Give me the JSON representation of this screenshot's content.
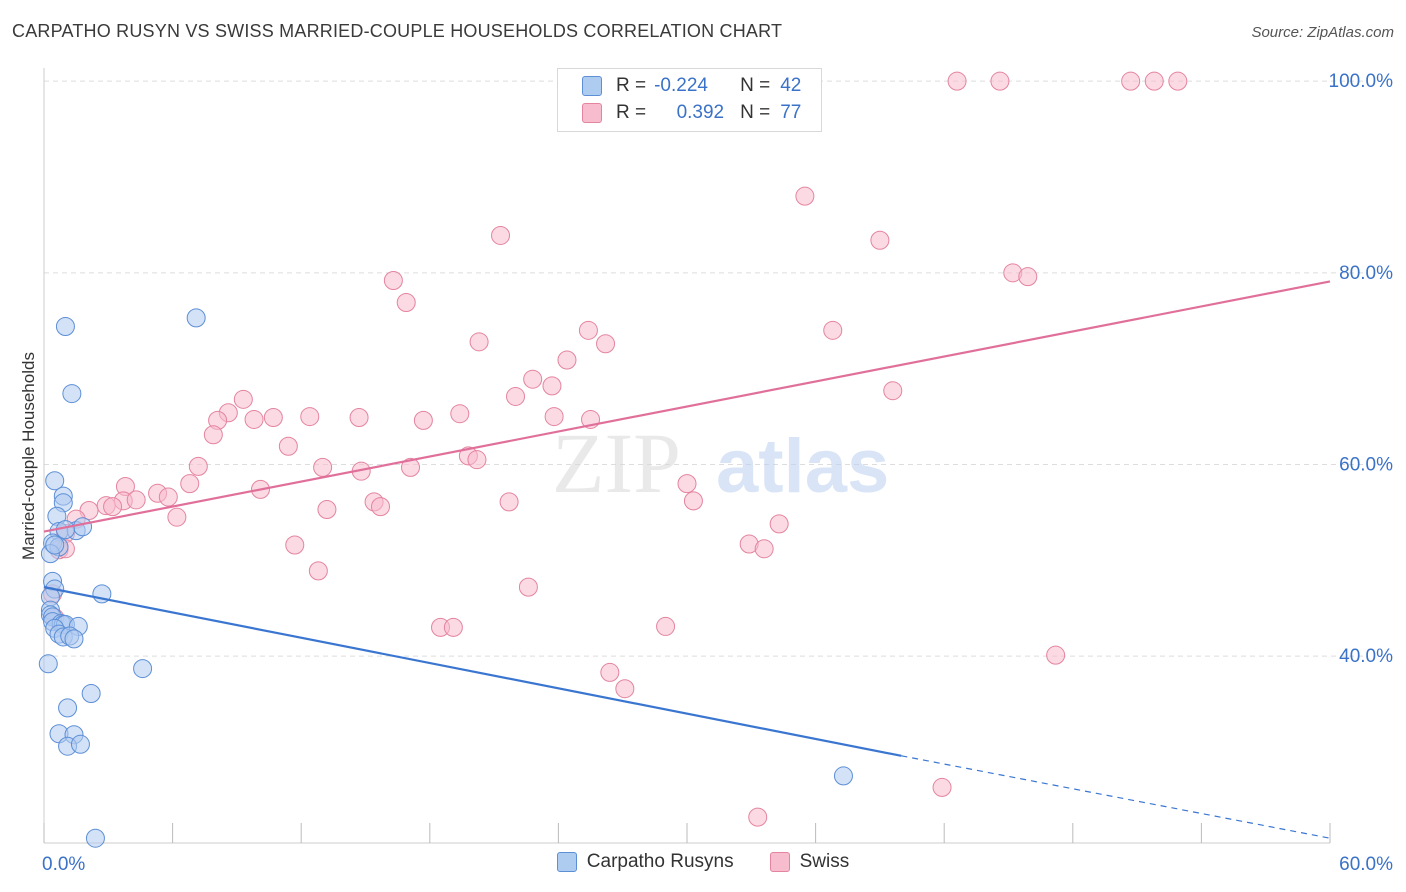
{
  "header": {
    "title": "CARPATHO RUSYN VS SWISS MARRIED-COUPLE HOUSEHOLDS CORRELATION CHART",
    "source": "Source: ZipAtlas.com"
  },
  "watermark": {
    "zip": "ZIP",
    "atlas": "atlas"
  },
  "legend": {
    "rows": [
      {
        "r_label": "R =",
        "r_value": "-0.224",
        "n_label": "N =",
        "n_value": "42"
      },
      {
        "r_label": "R =",
        "r_value": "0.392",
        "n_label": "N =",
        "n_value": "77"
      }
    ]
  },
  "colors": {
    "blue_fill": "#aecbf0",
    "blue_stroke": "#5d8fd6",
    "blue_line": "#3a76d0",
    "pink_fill": "#f7bccd",
    "pink_stroke": "#e4849f",
    "pink_line": "#e0709a",
    "axis_text": "#3a72c8",
    "grid": "#dddddd"
  },
  "chart_data": {
    "type": "scatter",
    "title": "CARPATHO RUSYN VS SWISS MARRIED-COUPLE HOUSEHOLDS CORRELATION CHART",
    "xlabel": "",
    "ylabel": "Married-couple Households",
    "xlim": [
      0,
      60
    ],
    "ylim": [
      20.5,
      102
    ],
    "x_ticks": [
      0,
      6,
      12,
      18,
      24,
      30,
      36,
      42,
      48,
      54,
      60
    ],
    "x_tick_labels": [
      {
        "x": 0,
        "label": "0.0%"
      },
      {
        "x": 60,
        "label": "60.0%"
      }
    ],
    "y_ticks": [
      {
        "y": 40,
        "label": "40.0%"
      },
      {
        "y": 60,
        "label": "60.0%"
      },
      {
        "y": 80,
        "label": "80.0%"
      },
      {
        "y": 100,
        "label": "100.0%"
      }
    ],
    "grid": true,
    "legend_position": "bottom-center",
    "series": [
      {
        "name": "Carpatho Rusyns",
        "color": "#aecbf0",
        "r": -0.224,
        "n": 42,
        "trend": {
          "x0": 0,
          "y0": 47.2,
          "x1": 40,
          "y1": 29.6,
          "dash_to_x": 60,
          "dash_to_y": 21.0
        },
        "points": [
          [
            1.0,
            74.4
          ],
          [
            7.1,
            75.3
          ],
          [
            1.3,
            67.4
          ],
          [
            0.5,
            58.3
          ],
          [
            0.9,
            56.7
          ],
          [
            0.9,
            56.0
          ],
          [
            0.6,
            54.6
          ],
          [
            0.7,
            53.0
          ],
          [
            1.5,
            53.1
          ],
          [
            1.8,
            53.5
          ],
          [
            0.4,
            51.8
          ],
          [
            0.7,
            51.4
          ],
          [
            0.3,
            50.7
          ],
          [
            0.4,
            47.8
          ],
          [
            0.5,
            47.0
          ],
          [
            2.7,
            46.5
          ],
          [
            0.3,
            46.2
          ],
          [
            0.3,
            44.8
          ],
          [
            0.3,
            44.3
          ],
          [
            0.4,
            44.1
          ],
          [
            0.4,
            43.6
          ],
          [
            0.8,
            43.4
          ],
          [
            0.9,
            43.3
          ],
          [
            1.0,
            43.3
          ],
          [
            0.5,
            42.9
          ],
          [
            1.6,
            43.1
          ],
          [
            0.7,
            42.3
          ],
          [
            0.9,
            42.0
          ],
          [
            1.2,
            42.1
          ],
          [
            1.4,
            41.8
          ],
          [
            0.2,
            39.2
          ],
          [
            4.6,
            38.7
          ],
          [
            2.2,
            36.1
          ],
          [
            1.1,
            34.6
          ],
          [
            0.7,
            31.9
          ],
          [
            1.4,
            31.8
          ],
          [
            1.1,
            30.6
          ],
          [
            1.7,
            30.8
          ],
          [
            37.3,
            27.5
          ],
          [
            2.4,
            21.0
          ],
          [
            0.5,
            51.6
          ],
          [
            1.0,
            53.2
          ]
        ]
      },
      {
        "name": "Swiss",
        "color": "#f7bccd",
        "r": 0.392,
        "n": 77,
        "trend": {
          "x0": 0,
          "y0": 53.0,
          "x1": 60,
          "y1": 79.1
        },
        "points": [
          [
            42.6,
            100.0
          ],
          [
            44.6,
            100.0
          ],
          [
            50.7,
            100.0
          ],
          [
            51.8,
            100.0
          ],
          [
            52.9,
            100.0
          ],
          [
            35.5,
            88.0
          ],
          [
            21.3,
            83.9
          ],
          [
            39.0,
            83.4
          ],
          [
            45.2,
            80.0
          ],
          [
            45.9,
            79.6
          ],
          [
            16.3,
            79.2
          ],
          [
            16.9,
            76.9
          ],
          [
            25.4,
            74.0
          ],
          [
            36.8,
            74.0
          ],
          [
            20.3,
            72.8
          ],
          [
            26.2,
            72.6
          ],
          [
            24.4,
            70.9
          ],
          [
            22.8,
            68.9
          ],
          [
            23.7,
            68.2
          ],
          [
            22.0,
            67.1
          ],
          [
            39.6,
            67.7
          ],
          [
            9.3,
            66.8
          ],
          [
            8.6,
            65.4
          ],
          [
            8.1,
            64.6
          ],
          [
            9.8,
            64.7
          ],
          [
            10.7,
            64.9
          ],
          [
            12.4,
            65.0
          ],
          [
            14.7,
            64.9
          ],
          [
            17.7,
            64.6
          ],
          [
            19.4,
            65.3
          ],
          [
            23.8,
            65.0
          ],
          [
            25.5,
            64.7
          ],
          [
            7.9,
            63.1
          ],
          [
            11.4,
            61.9
          ],
          [
            19.8,
            60.9
          ],
          [
            20.2,
            60.5
          ],
          [
            7.2,
            59.8
          ],
          [
            13.0,
            59.7
          ],
          [
            14.8,
            59.3
          ],
          [
            17.1,
            59.7
          ],
          [
            6.8,
            58.0
          ],
          [
            3.8,
            57.7
          ],
          [
            10.1,
            57.4
          ],
          [
            5.3,
            57.0
          ],
          [
            3.7,
            56.2
          ],
          [
            4.3,
            56.3
          ],
          [
            5.8,
            56.6
          ],
          [
            2.9,
            55.7
          ],
          [
            2.1,
            55.2
          ],
          [
            3.2,
            55.6
          ],
          [
            15.4,
            56.1
          ],
          [
            15.7,
            55.6
          ],
          [
            13.2,
            55.3
          ],
          [
            21.7,
            56.1
          ],
          [
            30.3,
            56.2
          ],
          [
            1.5,
            54.3
          ],
          [
            6.2,
            54.5
          ],
          [
            1.0,
            52.8
          ],
          [
            34.3,
            53.8
          ],
          [
            32.9,
            51.7
          ],
          [
            33.6,
            51.2
          ],
          [
            11.7,
            51.6
          ],
          [
            0.7,
            51.1
          ],
          [
            1.0,
            51.2
          ],
          [
            12.8,
            48.9
          ],
          [
            22.6,
            47.2
          ],
          [
            18.5,
            43.0
          ],
          [
            19.1,
            43.0
          ],
          [
            29.0,
            43.1
          ],
          [
            0.4,
            46.5
          ],
          [
            0.5,
            44.0
          ],
          [
            47.2,
            40.1
          ],
          [
            26.4,
            38.3
          ],
          [
            27.1,
            36.6
          ],
          [
            41.9,
            26.3
          ],
          [
            33.3,
            23.2
          ],
          [
            30.0,
            58.0
          ]
        ]
      }
    ]
  }
}
